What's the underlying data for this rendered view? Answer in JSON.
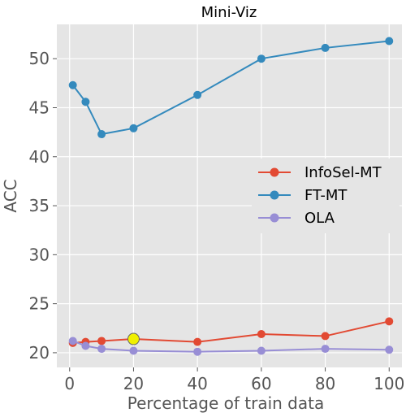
{
  "chart_data": {
    "type": "line",
    "title": "Mini-Viz",
    "xlabel": "Percentage of train data",
    "ylabel": "ACC",
    "xlim": [
      -4,
      104
    ],
    "ylim": [
      18.5,
      53.5
    ],
    "xticks": [
      0,
      20,
      40,
      60,
      80,
      100
    ],
    "yticks": [
      20,
      25,
      30,
      35,
      40,
      45,
      50
    ],
    "grid": true,
    "legend_position": "center-right",
    "series": [
      {
        "name": "InfoSel-MT",
        "color": "#e24a33",
        "x": [
          1,
          5,
          10,
          20,
          40,
          60,
          80,
          100
        ],
        "y": [
          21.0,
          21.1,
          21.2,
          21.4,
          21.1,
          21.9,
          21.7,
          23.2
        ]
      },
      {
        "name": "FT-MT",
        "color": "#348abd",
        "x": [
          1,
          5,
          10,
          20,
          40,
          60,
          80,
          100
        ],
        "y": [
          47.3,
          45.6,
          42.3,
          42.9,
          46.3,
          50.0,
          51.1,
          51.8
        ]
      },
      {
        "name": "OLA",
        "color": "#988ed5",
        "x": [
          1,
          5,
          10,
          20,
          40,
          60,
          80,
          100
        ],
        "y": [
          21.2,
          20.7,
          20.4,
          20.2,
          20.1,
          20.2,
          20.4,
          20.3
        ]
      }
    ],
    "highlight": {
      "x": 20,
      "y": 21.4,
      "color": "#f0f000"
    }
  }
}
